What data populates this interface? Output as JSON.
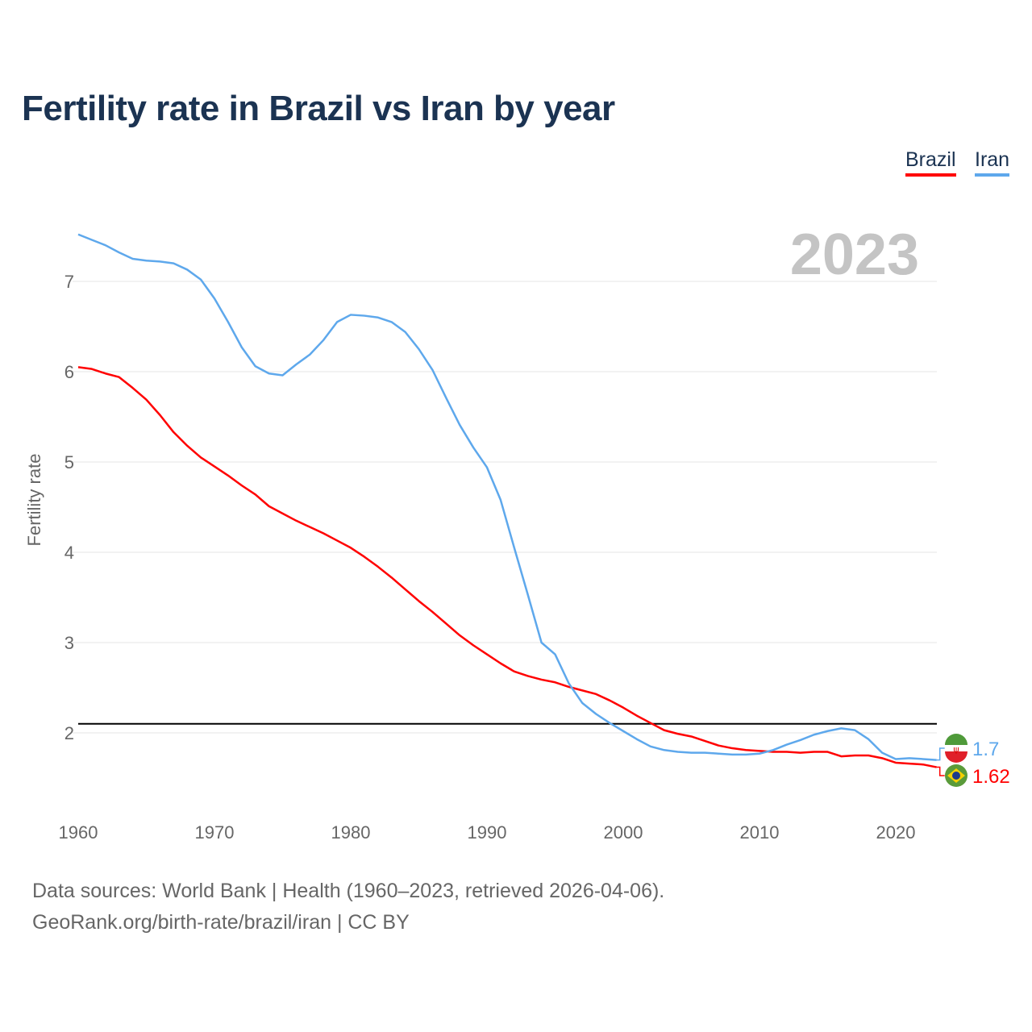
{
  "chart_data": {
    "type": "line",
    "title": "Fertility rate in Brazil vs Iran by year",
    "xlabel": "",
    "ylabel": "Fertility rate",
    "xlim": [
      1960,
      2023
    ],
    "ylim": [
      1.3,
      7.7
    ],
    "x_ticks": [
      1960,
      1970,
      1980,
      1990,
      2000,
      2010,
      2020
    ],
    "y_ticks": [
      2,
      3,
      4,
      5,
      6,
      7
    ],
    "grid": true,
    "legend_position": "top-right",
    "year_watermark": "2023",
    "reference_line": {
      "y": 2.1,
      "color": "#000000"
    },
    "x": [
      1960,
      1961,
      1962,
      1963,
      1964,
      1965,
      1966,
      1967,
      1968,
      1969,
      1970,
      1971,
      1972,
      1973,
      1974,
      1975,
      1976,
      1977,
      1978,
      1979,
      1980,
      1981,
      1982,
      1983,
      1984,
      1985,
      1986,
      1987,
      1988,
      1989,
      1990,
      1991,
      1992,
      1993,
      1994,
      1995,
      1996,
      1997,
      1998,
      1999,
      2000,
      2001,
      2002,
      2003,
      2004,
      2005,
      2006,
      2007,
      2008,
      2009,
      2010,
      2011,
      2012,
      2013,
      2014,
      2015,
      2016,
      2017,
      2018,
      2019,
      2020,
      2021,
      2022,
      2023
    ],
    "series": [
      {
        "name": "Brazil",
        "color": "#ff0000",
        "end_label": "1.62",
        "values": [
          6.05,
          6.03,
          5.98,
          5.94,
          5.82,
          5.69,
          5.52,
          5.33,
          5.18,
          5.05,
          4.95,
          4.85,
          4.74,
          4.64,
          4.51,
          4.43,
          4.35,
          4.28,
          4.21,
          4.13,
          4.05,
          3.95,
          3.84,
          3.72,
          3.59,
          3.46,
          3.34,
          3.21,
          3.08,
          2.97,
          2.87,
          2.77,
          2.68,
          2.63,
          2.59,
          2.56,
          2.51,
          2.47,
          2.43,
          2.36,
          2.28,
          2.19,
          2.11,
          2.03,
          1.99,
          1.96,
          1.91,
          1.86,
          1.83,
          1.81,
          1.8,
          1.79,
          1.79,
          1.78,
          1.79,
          1.79,
          1.74,
          1.75,
          1.75,
          1.72,
          1.67,
          1.66,
          1.65,
          1.62
        ]
      },
      {
        "name": "Iran",
        "color": "#5ea8ec",
        "end_label": "1.7",
        "values": [
          7.52,
          7.46,
          7.4,
          7.32,
          7.25,
          7.23,
          7.22,
          7.2,
          7.13,
          7.02,
          6.81,
          6.55,
          6.27,
          6.06,
          5.98,
          5.96,
          6.08,
          6.19,
          6.35,
          6.55,
          6.63,
          6.62,
          6.6,
          6.55,
          6.44,
          6.25,
          6.02,
          5.71,
          5.41,
          5.16,
          4.94,
          4.58,
          4.05,
          3.53,
          3.0,
          2.87,
          2.55,
          2.33,
          2.21,
          2.11,
          2.02,
          1.93,
          1.85,
          1.81,
          1.79,
          1.78,
          1.78,
          1.77,
          1.76,
          1.76,
          1.77,
          1.81,
          1.87,
          1.92,
          1.98,
          2.02,
          2.05,
          2.03,
          1.93,
          1.78,
          1.71,
          1.72,
          1.71,
          1.7
        ]
      }
    ]
  },
  "footer": {
    "line1": "Data sources: World Bank | Health (1960–2023, retrieved 2026-04-06).",
    "line2": "GeoRank.org/birth-rate/brazil/iran | CC BY"
  }
}
